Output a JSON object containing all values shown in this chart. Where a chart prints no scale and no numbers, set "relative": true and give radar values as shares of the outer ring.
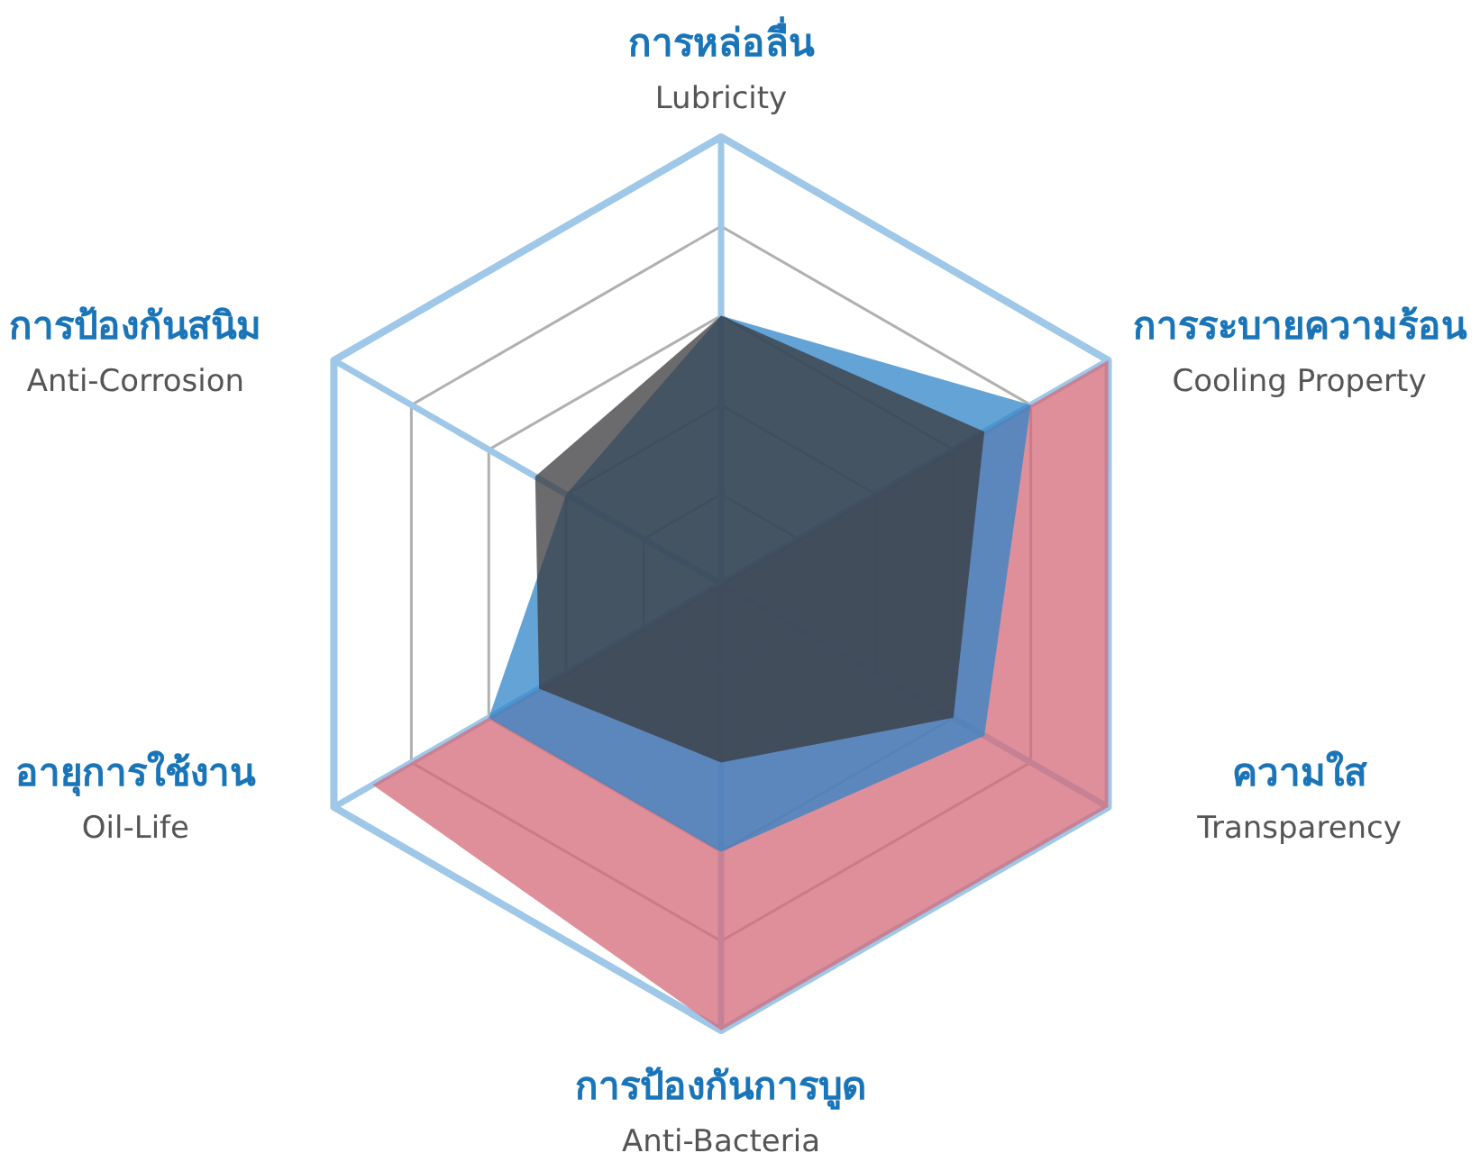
{
  "chart_data": {
    "type": "radar",
    "relative": true,
    "categories": [
      "การหล่อลื่น\nLubricity",
      "การระบายความร้อน\nCooling Property",
      "ความใส\nTransparency",
      "การป้องกันการบูด\nAnti-Bacteria",
      "อายุการใช้งาน\nOil-Life",
      "การป้องกันสนิม\nAnti-Corrosion"
    ],
    "series": [
      {
        "color": "#d46a78",
        "values": [
          0,
          1,
          1,
          1,
          0.9,
          0
        ]
      },
      {
        "color": "#2f84c8",
        "values": [
          0.6,
          0.8,
          0.68,
          0.6,
          0.6,
          0.4
        ]
      },
      {
        "color": "#3a3a3c",
        "values": [
          0.6,
          0.68,
          0.6,
          0.4,
          0.47,
          0.48
        ]
      }
    ]
  }
}
